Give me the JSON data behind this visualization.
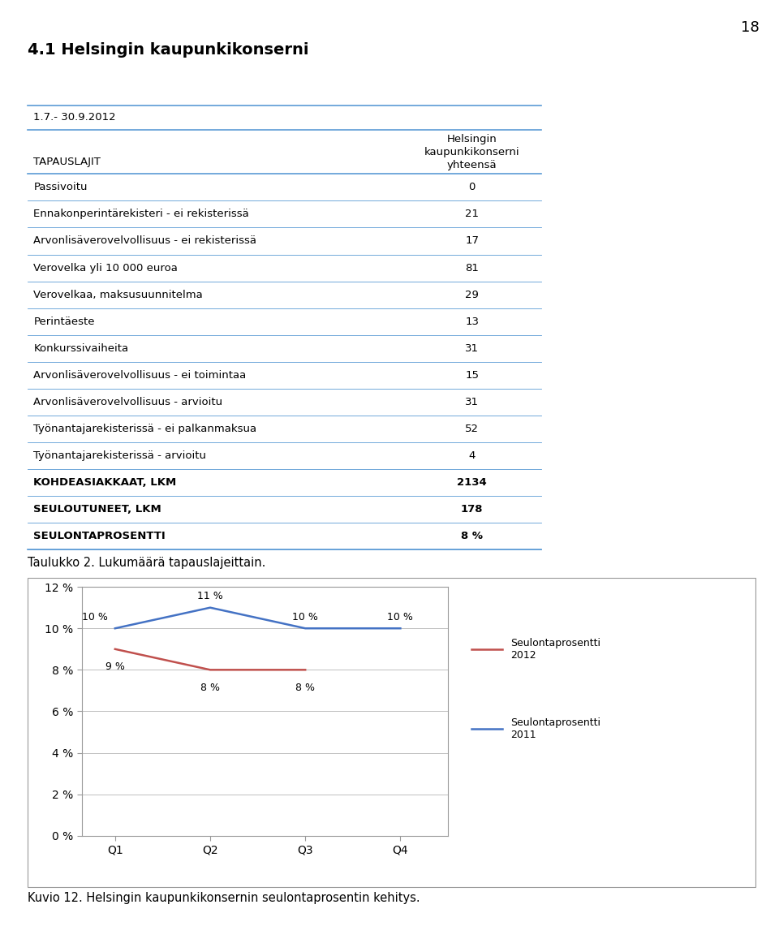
{
  "page_number": "18",
  "main_title": "4.1 Helsingin kaupunkikonserni",
  "date_range": "1.7.- 30.9.2012",
  "col_header_line1": "Helsingin",
  "col_header_line2": "kaupunkikonserni",
  "col_header_line3": "yhteensä",
  "col_left_header": "TAPAUSLAJIT",
  "table_rows": [
    [
      "Passivoitu",
      "0"
    ],
    [
      "Ennakonperintärekisteri - ei rekisterissä",
      "21"
    ],
    [
      "Arvonlisäverovelvollisuus - ei rekisterissä",
      "17"
    ],
    [
      "Verovelka yli 10 000 euroa",
      "81"
    ],
    [
      "Verovelkaa, maksusuunnitelma",
      "29"
    ],
    [
      "Perintäeste",
      "13"
    ],
    [
      "Konkurssivaiheita",
      "31"
    ],
    [
      "Arvonlisäverovelvollisuus - ei toimintaa",
      "15"
    ],
    [
      "Arvonlisäverovelvollisuus - arvioitu",
      "31"
    ],
    [
      "Työnantajarekisterissä - ei palkanmaksua",
      "52"
    ],
    [
      "Työnantajarekisterissä - arvioitu",
      "4"
    ],
    [
      "KOHDEASIAKKAAT, LKM",
      "2134"
    ],
    [
      "SEULOUTUNEET, LKM",
      "178"
    ],
    [
      "SEULONTAPROSENTTI",
      "8 %"
    ]
  ],
  "bold_rows": [
    11,
    12,
    13
  ],
  "gray_rows": [
    11,
    12,
    13
  ],
  "header_bg": "#d9d9d9",
  "blue_line_color": "#5b9bd5",
  "table_caption": "Taulukko 2. Lukumäärä tapauslajeittain.",
  "chart_caption": "Kuvio 12. Helsingin kaupunkikonsernin seulontaprosentin kehitys.",
  "quarters": [
    "Q1",
    "Q2",
    "Q3",
    "Q4"
  ],
  "series_2012": [
    9,
    8,
    8,
    null
  ],
  "series_2011": [
    10,
    11,
    10,
    10
  ],
  "series_2012_labels": [
    "9 %",
    "8 %",
    "8 %",
    ""
  ],
  "series_2011_labels": [
    "10 %",
    "11 %",
    "10 %",
    "10 %"
  ],
  "color_2012": "#c0504d",
  "color_2011": "#4472c4",
  "legend_2012": "Seulontaprosentti\n2012",
  "legend_2011": "Seulontaprosentti\n2011",
  "y_ticks": [
    0,
    2,
    4,
    6,
    8,
    10,
    12
  ],
  "y_tick_labels": [
    "0 %",
    "2 %",
    "4 %",
    "6 %",
    "8 %",
    "10 %",
    "12 %"
  ],
  "chart_border_color": "#808080",
  "grid_color": "#c0c0c0",
  "fig_width": 9.6,
  "fig_height": 11.57,
  "fig_dpi": 100
}
